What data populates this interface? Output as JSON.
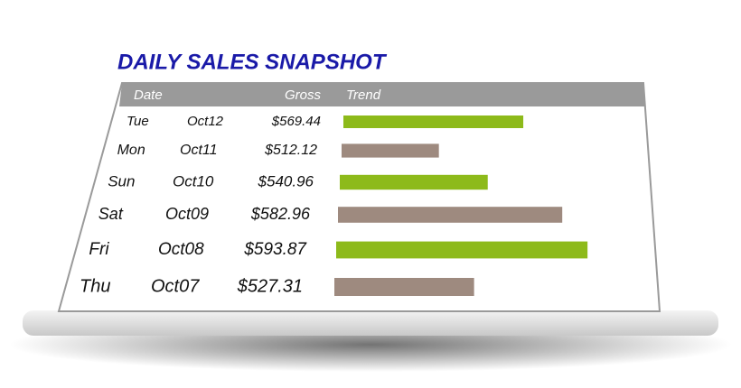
{
  "chart_data": {
    "type": "bar",
    "orientation": "horizontal",
    "title": "DAILY SALES SNAPSHOT",
    "columns": [
      "Date",
      "Gross",
      "Trend"
    ],
    "days": [
      "Tue",
      "Mon",
      "Sun",
      "Sat",
      "Fri",
      "Thu"
    ],
    "categories": [
      "Oct12",
      "Oct11",
      "Oct10",
      "Oct09",
      "Oct08",
      "Oct07"
    ],
    "values": [
      569.44,
      512.12,
      540.96,
      582.96,
      593.87,
      527.31
    ],
    "value_labels": [
      "$569.44",
      "$512.12",
      "$540.96",
      "$582.96",
      "$593.87",
      "$527.31"
    ],
    "colors": [
      "#8dba1a",
      "#9e8a7f",
      "#8dba1a",
      "#9e8a7f",
      "#8dba1a",
      "#9e8a7f"
    ],
    "xlim": [
      450,
      600
    ]
  }
}
